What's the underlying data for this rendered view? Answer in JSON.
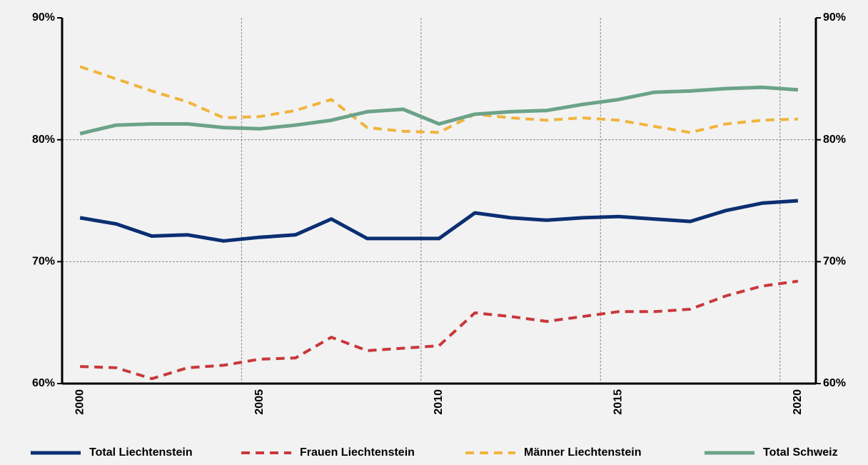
{
  "chart_data": {
    "type": "line",
    "categories": [
      "2000",
      null,
      null,
      null,
      null,
      "2005",
      null,
      null,
      null,
      null,
      "2010",
      null,
      null,
      null,
      null,
      "2015",
      null,
      null,
      null,
      null,
      "2020"
    ],
    "series": [
      {
        "name": "Total Liechtenstein",
        "color": "#0b2f72",
        "dash": false,
        "values": [
          73.6,
          73.1,
          72.1,
          72.2,
          71.7,
          72.0,
          72.2,
          73.5,
          71.9,
          71.9,
          71.9,
          74.0,
          73.6,
          73.4,
          73.6,
          73.7,
          73.5,
          73.3,
          74.2,
          74.8,
          75.0
        ]
      },
      {
        "name": "Frauen Liechtenstein",
        "color": "#c9383a",
        "dash": true,
        "values": [
          61.4,
          61.3,
          60.4,
          61.3,
          61.5,
          62.0,
          62.1,
          63.8,
          62.7,
          62.9,
          63.1,
          65.8,
          65.5,
          65.1,
          65.5,
          65.9,
          65.9,
          66.1,
          67.2,
          68.0,
          68.4
        ]
      },
      {
        "name": "Männer Liechtenstein",
        "color": "#f0b43c",
        "dash": true,
        "values": [
          86.0,
          85.0,
          84.0,
          83.1,
          81.8,
          81.9,
          82.4,
          83.3,
          81.0,
          80.7,
          80.6,
          82.1,
          81.8,
          81.6,
          81.8,
          81.6,
          81.1,
          80.6,
          81.3,
          81.6,
          81.7
        ]
      },
      {
        "name": "Total Schweiz",
        "color": "#6ba389",
        "dash": false,
        "values": [
          80.5,
          81.2,
          81.3,
          81.3,
          81.0,
          80.9,
          81.2,
          81.6,
          82.3,
          82.5,
          81.3,
          82.1,
          82.3,
          82.4,
          82.9,
          83.3,
          83.9,
          84.0,
          84.2,
          84.3,
          84.1
        ]
      }
    ],
    "ylim": [
      60,
      90
    ],
    "yticks": [
      {
        "value": 60,
        "label": "60%"
      },
      {
        "value": 70,
        "label": "70%"
      },
      {
        "value": 80,
        "label": "80%"
      },
      {
        "value": 90,
        "label": "90%"
      }
    ],
    "y2lim": [
      60,
      90
    ],
    "y2ticks": [
      {
        "value": 60,
        "label": "60%"
      },
      {
        "value": 70,
        "label": "70%"
      },
      {
        "value": 80,
        "label": "80%"
      },
      {
        "value": 90,
        "label": "90%"
      }
    ],
    "grid": true,
    "legend": "bottom"
  }
}
